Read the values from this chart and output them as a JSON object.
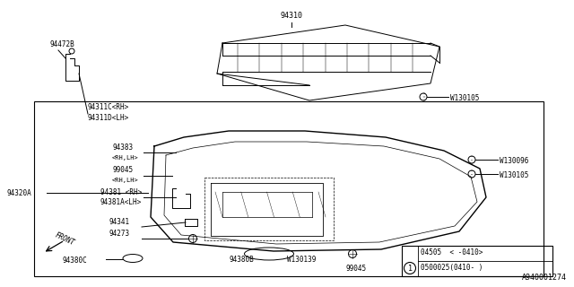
{
  "bg_color": "#ffffff",
  "diagram_color": "#000000",
  "watermark": "A940001274",
  "legend_line1": "04505  < -0410>",
  "legend_line2": "0500025(0410- )"
}
